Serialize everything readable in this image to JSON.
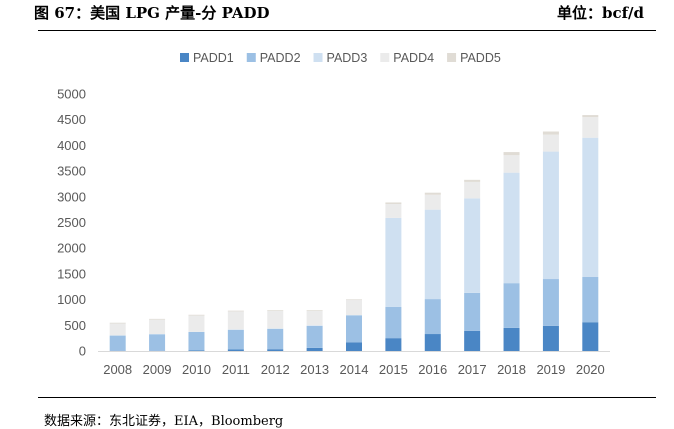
{
  "header": {
    "title": "图 67：美国 LPG 产量-分 PADD",
    "unit": "单位：bcf/d"
  },
  "footer": {
    "source": "数据来源：东北证券，EIA，Bloomberg"
  },
  "chart_data": {
    "type": "bar",
    "stacked": true,
    "categories": [
      "2008",
      "2009",
      "2010",
      "2011",
      "2012",
      "2013",
      "2014",
      "2015",
      "2016",
      "2017",
      "2018",
      "2019",
      "2020"
    ],
    "series": [
      {
        "name": "PADD1",
        "color": "#4a86c5",
        "values": [
          5,
          5,
          10,
          30,
          35,
          60,
          170,
          250,
          330,
          390,
          450,
          490,
          560
        ]
      },
      {
        "name": "PADD2",
        "color": "#9cc0e4",
        "values": [
          295,
          320,
          360,
          380,
          395,
          430,
          520,
          610,
          680,
          740,
          870,
          910,
          880
        ]
      },
      {
        "name": "PADD3",
        "color": "#cfe0f1",
        "values": [
          5,
          5,
          5,
          10,
          10,
          10,
          10,
          1730,
          1740,
          1840,
          2150,
          2480,
          2710
        ]
      },
      {
        "name": "PADD4",
        "color": "#ebebeb",
        "values": [
          230,
          280,
          315,
          350,
          340,
          280,
          290,
          270,
          290,
          320,
          340,
          330,
          400
        ]
      },
      {
        "name": "PADD5",
        "color": "#e0dcd5",
        "values": [
          15,
          15,
          15,
          15,
          15,
          15,
          15,
          30,
          40,
          40,
          60,
          60,
          40
        ]
      }
    ],
    "ylim": [
      0,
      5000
    ],
    "yticks": [
      0,
      500,
      1000,
      1500,
      2000,
      2500,
      3000,
      3500,
      4000,
      4500,
      5000
    ],
    "grid": false,
    "legend": "top"
  }
}
